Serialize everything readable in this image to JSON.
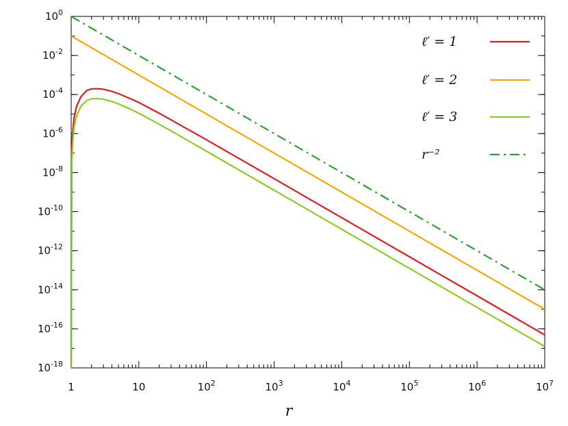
{
  "chart_data": {
    "type": "line",
    "title": "",
    "xlabel": "r",
    "ylabel": "",
    "xscale": "log",
    "yscale": "log",
    "xlim": [
      1,
      10000000
    ],
    "ylim": [
      1e-18,
      1
    ],
    "grid": false,
    "legend_position": "top-right",
    "x_ticks": [
      {
        "value": 1,
        "base": "1",
        "exp": ""
      },
      {
        "value": 10,
        "base": "10",
        "exp": ""
      },
      {
        "value": 100,
        "base": "10",
        "exp": "2"
      },
      {
        "value": 1000,
        "base": "10",
        "exp": "3"
      },
      {
        "value": 10000,
        "base": "10",
        "exp": "4"
      },
      {
        "value": 100000,
        "base": "10",
        "exp": "5"
      },
      {
        "value": 1000000,
        "base": "10",
        "exp": "6"
      },
      {
        "value": 10000000,
        "base": "10",
        "exp": "7"
      }
    ],
    "y_ticks": [
      {
        "value": 1,
        "base": "10",
        "exp": "0"
      },
      {
        "value": 0.01,
        "base": "10",
        "exp": "-2"
      },
      {
        "value": 0.0001,
        "base": "10",
        "exp": "-4"
      },
      {
        "value": 1e-06,
        "base": "10",
        "exp": "-6"
      },
      {
        "value": 1e-08,
        "base": "10",
        "exp": "-8"
      },
      {
        "value": 1e-10,
        "base": "10",
        "exp": "-10"
      },
      {
        "value": 1e-12,
        "base": "10",
        "exp": "-12"
      },
      {
        "value": 1e-14,
        "base": "10",
        "exp": "-14"
      },
      {
        "value": 1e-16,
        "base": "10",
        "exp": "-16"
      },
      {
        "value": 1e-18,
        "base": "10",
        "exp": "-18"
      }
    ],
    "series": [
      {
        "name": "ℓ′ = 1",
        "color": "#e41a1c",
        "dash": "solid",
        "x": [
          1,
          1.02,
          1.05,
          1.1,
          1.2,
          1.4,
          1.7,
          2,
          2.5,
          3,
          4,
          5,
          7,
          10,
          20,
          50,
          100,
          1000,
          10000,
          100000,
          1000000,
          10000000
        ],
        "y": [
          1e-18,
          1e-07,
          1e-06,
          6e-06,
          2.5e-05,
          8e-05,
          0.00016,
          0.000195,
          0.0002,
          0.000185,
          0.000145,
          0.00011,
          6.8e-05,
          3.9e-05,
          1.1e-05,
          1.85e-06,
          4.8e-07,
          4.9e-09,
          4.9e-11,
          4.9e-13,
          4.9e-15,
          4.9e-17
        ]
      },
      {
        "name": "ℓ′ = 2",
        "color": "#ffa500",
        "dash": "solid",
        "x": [
          1,
          10,
          100,
          1000,
          10000,
          100000,
          1000000,
          10000000
        ],
        "y": [
          0.1,
          0.001,
          1e-05,
          1e-07,
          1e-09,
          1e-11,
          1e-13,
          1e-15
        ]
      },
      {
        "name": "ℓ′ = 3",
        "color": "#8acd1e",
        "dash": "solid",
        "x": [
          1,
          1.02,
          1.05,
          1.1,
          1.2,
          1.4,
          1.7,
          2,
          2.5,
          3,
          4,
          5,
          7,
          10,
          20,
          50,
          100,
          1000,
          10000,
          100000,
          1000000,
          10000000
        ],
        "y": [
          1e-18,
          3e-08,
          3e-07,
          2e-06,
          8e-06,
          2.6e-05,
          5e-05,
          6e-05,
          6.2e-05,
          5.7e-05,
          4.4e-05,
          3.3e-05,
          2e-05,
          1.1e-05,
          3e-06,
          5e-07,
          1.25e-07,
          1.25e-09,
          1.25e-11,
          1.25e-13,
          1.25e-15,
          1.25e-17
        ]
      },
      {
        "name": "r⁻²",
        "color": "#2ca02c",
        "dash": "dash-dot",
        "x": [
          1,
          10,
          100,
          1000,
          10000,
          100000,
          1000000,
          10000000
        ],
        "y": [
          1,
          0.01,
          0.0001,
          1e-06,
          1e-08,
          1e-10,
          1e-12,
          1e-14
        ]
      }
    ]
  }
}
